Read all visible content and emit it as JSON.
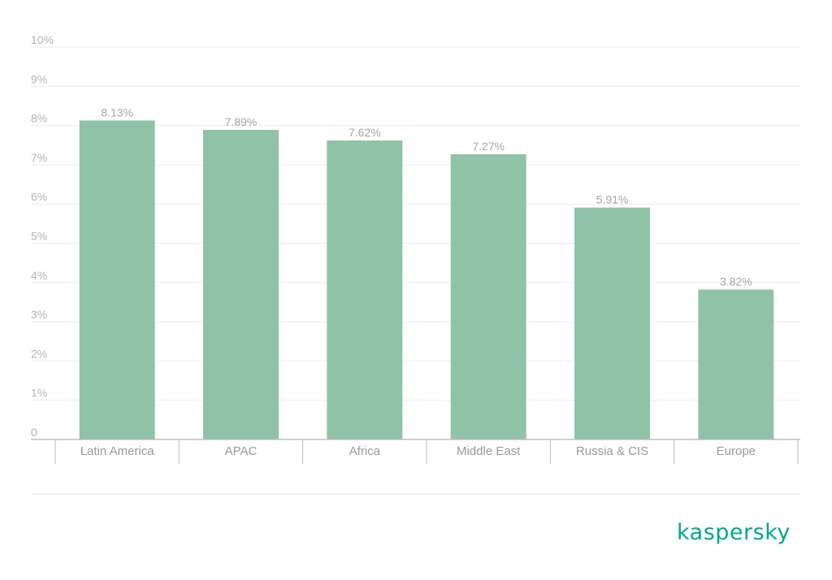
{
  "chart_data": {
    "type": "bar",
    "categories": [
      "Latin America",
      "APAC",
      "Africa",
      "Middle East",
      "Russia & CIS",
      "Europe"
    ],
    "values": [
      8.13,
      7.89,
      7.62,
      7.27,
      5.91,
      3.82
    ],
    "data_labels": [
      "8.13%",
      "7.89%",
      "7.62%",
      "7.27%",
      "5.91%",
      "3.82%"
    ],
    "ylim": [
      0,
      10
    ],
    "yticks": [
      0,
      1,
      2,
      3,
      4,
      5,
      6,
      7,
      8,
      9,
      10
    ],
    "ytick_labels": [
      "0",
      "1%",
      "2%",
      "3%",
      "4%",
      "5%",
      "6%",
      "7%",
      "8%",
      "9%",
      "10%"
    ],
    "grid": true,
    "bar_color": "#8fc2a7",
    "grid_color": "#ececec",
    "axis_color": "#bdbdbd"
  },
  "brand": {
    "logo_text": "kaspersky",
    "logo_color": "#00a88e"
  }
}
